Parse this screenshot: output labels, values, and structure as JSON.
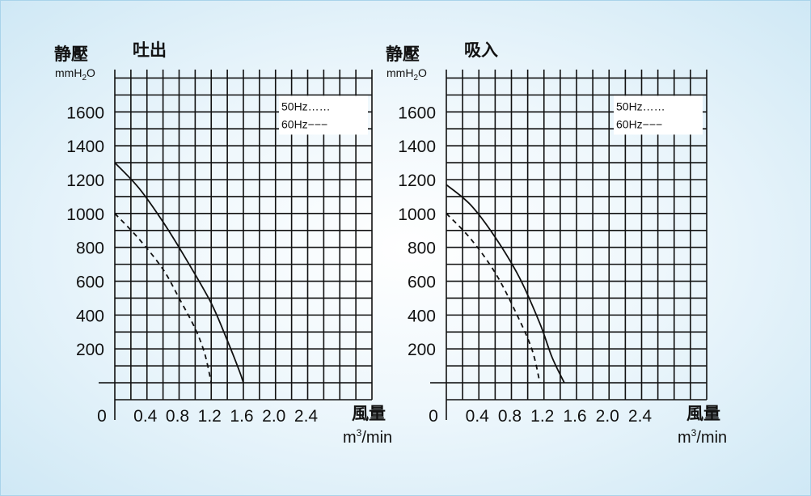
{
  "chart_data": [
    {
      "type": "line",
      "title": "吐出",
      "ylabel": "静壓",
      "yunit": "mmH2O",
      "xlabel": "風量",
      "xunit": "m3/min",
      "origin_label": "0",
      "xlim": [
        0,
        3.2
      ],
      "ylim": [
        -100,
        1850
      ],
      "x_ticks": [
        "0.4",
        "0.8",
        "1.2",
        "1.6",
        "2.0",
        "2.4"
      ],
      "y_ticks": [
        "200",
        "400",
        "600",
        "800",
        "1000",
        "1200",
        "1400",
        "1600"
      ],
      "grid": true,
      "legend": [
        "50Hz……",
        "60Hz−−−"
      ],
      "legend_position": "top-right",
      "series": [
        {
          "style": "solid",
          "points": [
            [
              0,
              1300
            ],
            [
              0.3,
              1150
            ],
            [
              0.6,
              950
            ],
            [
              0.9,
              720
            ],
            [
              1.2,
              470
            ],
            [
              1.4,
              250
            ],
            [
              1.55,
              70
            ],
            [
              1.6,
              0
            ]
          ]
        },
        {
          "style": "dashed",
          "points": [
            [
              0,
              1000
            ],
            [
              0.3,
              850
            ],
            [
              0.6,
              670
            ],
            [
              0.8,
              500
            ],
            [
              1.0,
              320
            ],
            [
              1.12,
              170
            ],
            [
              1.2,
              0
            ]
          ]
        }
      ]
    },
    {
      "type": "line",
      "title": "吸入",
      "ylabel": "静壓",
      "yunit": "mmH2O",
      "xlabel": "風量",
      "xunit": "m3/min",
      "origin_label": "0",
      "xlim": [
        0,
        3.2
      ],
      "ylim": [
        -100,
        1850
      ],
      "x_ticks": [
        "0.4",
        "0.8",
        "1.2",
        "1.6",
        "2.0",
        "2.4"
      ],
      "y_ticks": [
        "200",
        "400",
        "600",
        "800",
        "1000",
        "1200",
        "1400",
        "1600"
      ],
      "grid": true,
      "legend": [
        "50Hz……",
        "60Hz−−−"
      ],
      "legend_position": "top-right",
      "series": [
        {
          "style": "solid",
          "points": [
            [
              0,
              1170
            ],
            [
              0.3,
              1050
            ],
            [
              0.6,
              860
            ],
            [
              0.9,
              620
            ],
            [
              1.15,
              350
            ],
            [
              1.3,
              150
            ],
            [
              1.45,
              0
            ]
          ]
        },
        {
          "style": "dashed",
          "points": [
            [
              0,
              1000
            ],
            [
              0.3,
              850
            ],
            [
              0.6,
              650
            ],
            [
              0.85,
              420
            ],
            [
              1.05,
              200
            ],
            [
              1.15,
              0
            ]
          ]
        }
      ]
    }
  ]
}
